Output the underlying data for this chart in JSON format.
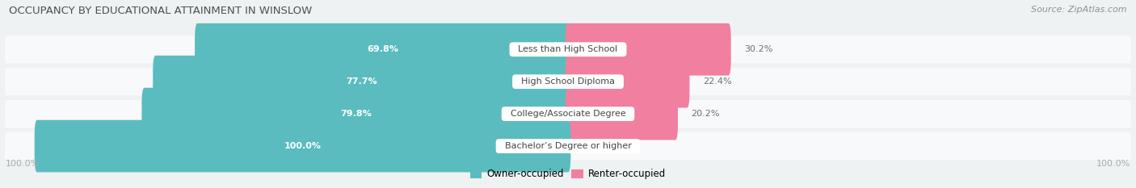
{
  "title": "OCCUPANCY BY EDUCATIONAL ATTAINMENT IN WINSLOW",
  "source": "Source: ZipAtlas.com",
  "categories": [
    "Less than High School",
    "High School Diploma",
    "College/Associate Degree",
    "Bachelor’s Degree or higher"
  ],
  "owner_values": [
    69.8,
    77.7,
    79.8,
    100.0
  ],
  "renter_values": [
    30.2,
    22.4,
    20.2,
    0.0
  ],
  "owner_color": "#5bbcbf",
  "renter_color": "#f07fa0",
  "renter_color_light": "#f7b8cc",
  "bg_color": "#eef2f3",
  "row_bg_color": "#ffffff",
  "title_color": "#505050",
  "source_color": "#909090",
  "value_color_white": "#ffffff",
  "value_color_dark": "#707070",
  "axis_label_color": "#aaaaaa",
  "legend_owner": "Owner-occupied",
  "legend_renter": "Renter-occupied",
  "x_left_label": "100.0%",
  "x_right_label": "100.0%",
  "figwidth": 14.06,
  "figheight": 2.33,
  "dpi": 100
}
